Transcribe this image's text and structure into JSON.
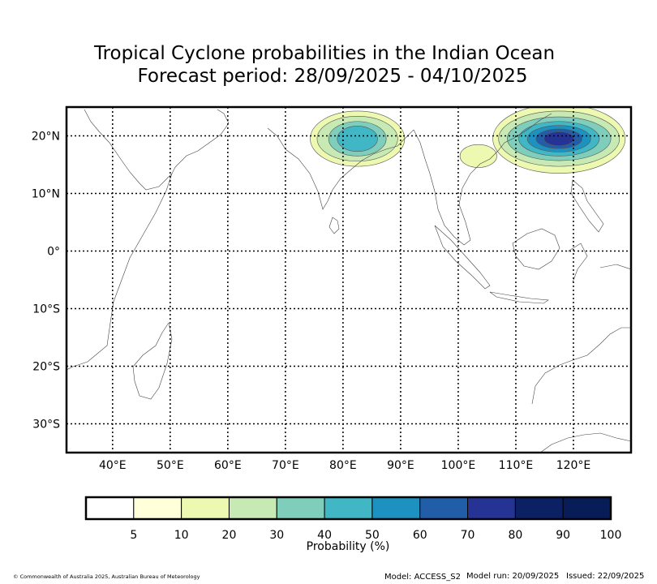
{
  "chart_data": {
    "type": "heatmap",
    "title_line1": "Tropical Cyclone probabilities in the Indian Ocean",
    "title_line2": "Forecast period: 28/09/2025 - 04/10/2025",
    "x_ticks": [
      {
        "value": 40,
        "label": "40°E"
      },
      {
        "value": 50,
        "label": "50°E"
      },
      {
        "value": 60,
        "label": "60°E"
      },
      {
        "value": 70,
        "label": "70°E"
      },
      {
        "value": 80,
        "label": "80°E"
      },
      {
        "value": 90,
        "label": "90°E"
      },
      {
        "value": 100,
        "label": "100°E"
      },
      {
        "value": 110,
        "label": "110°E"
      },
      {
        "value": 120,
        "label": "120°E"
      }
    ],
    "y_ticks": [
      {
        "value": 20,
        "label": "20°N"
      },
      {
        "value": 10,
        "label": "10°N"
      },
      {
        "value": 0,
        "label": "0°"
      },
      {
        "value": -10,
        "label": "10°S"
      },
      {
        "value": -20,
        "label": "20°S"
      },
      {
        "value": -30,
        "label": "30°S"
      }
    ],
    "xlim": [
      32,
      130
    ],
    "ylim": [
      -35,
      25
    ],
    "grid": true,
    "colorbar": {
      "label": "Probability (%)",
      "levels": [
        0,
        5,
        10,
        20,
        30,
        40,
        50,
        60,
        70,
        80,
        90,
        100
      ],
      "tick_labels": [
        "5",
        "10",
        "20",
        "30",
        "40",
        "50",
        "60",
        "70",
        "80",
        "90",
        "100"
      ],
      "colors": [
        "#ffffff",
        "#ffffd9",
        "#edf8b1",
        "#c7e9b4",
        "#7fcdbb",
        "#41b6c4",
        "#1d91c0",
        "#225ea8",
        "#253494",
        "#0c2163",
        "#081d58"
      ]
    },
    "probability_regions": [
      {
        "name": "",
        "cx": 82.5,
        "cy": 19.5,
        "contours": [
          {
            "level": 5,
            "rx": 8.2,
            "ry": 4.8
          },
          {
            "level": 10,
            "rx": 7.0,
            "ry": 3.9
          },
          {
            "level": 20,
            "rx": 5.0,
            "ry": 3.0
          },
          {
            "level": 30,
            "rx": 3.5,
            "ry": 2.2
          }
        ]
      },
      {
        "name": "",
        "cx": 117.5,
        "cy": 19.5,
        "contours": [
          {
            "level": 5,
            "rx": 11.5,
            "ry": 6.0
          },
          {
            "level": 10,
            "rx": 10.5,
            "ry": 4.8
          },
          {
            "level": 20,
            "rx": 9.0,
            "ry": 3.8
          },
          {
            "level": 30,
            "rx": 7.0,
            "ry": 3.0
          },
          {
            "level": 40,
            "rx": 5.5,
            "ry": 2.3
          },
          {
            "level": 50,
            "rx": 4.0,
            "ry": 1.7
          },
          {
            "level": 60,
            "rx": 2.6,
            "ry": 1.2
          }
        ]
      },
      {
        "name": "",
        "cx": 103.5,
        "cy": 16.5,
        "contours": [
          {
            "level": 5,
            "rx": 3.2,
            "ry": 2.0
          }
        ]
      }
    ],
    "footer": {
      "copyright": "© Commonwealth of Australia 2025, Australian Bureau of Meteorology",
      "model": "Model: ACCESS_S2",
      "model_run": "Model run: 20/09/2025",
      "issued": "Issued: 22/09/2025"
    }
  }
}
